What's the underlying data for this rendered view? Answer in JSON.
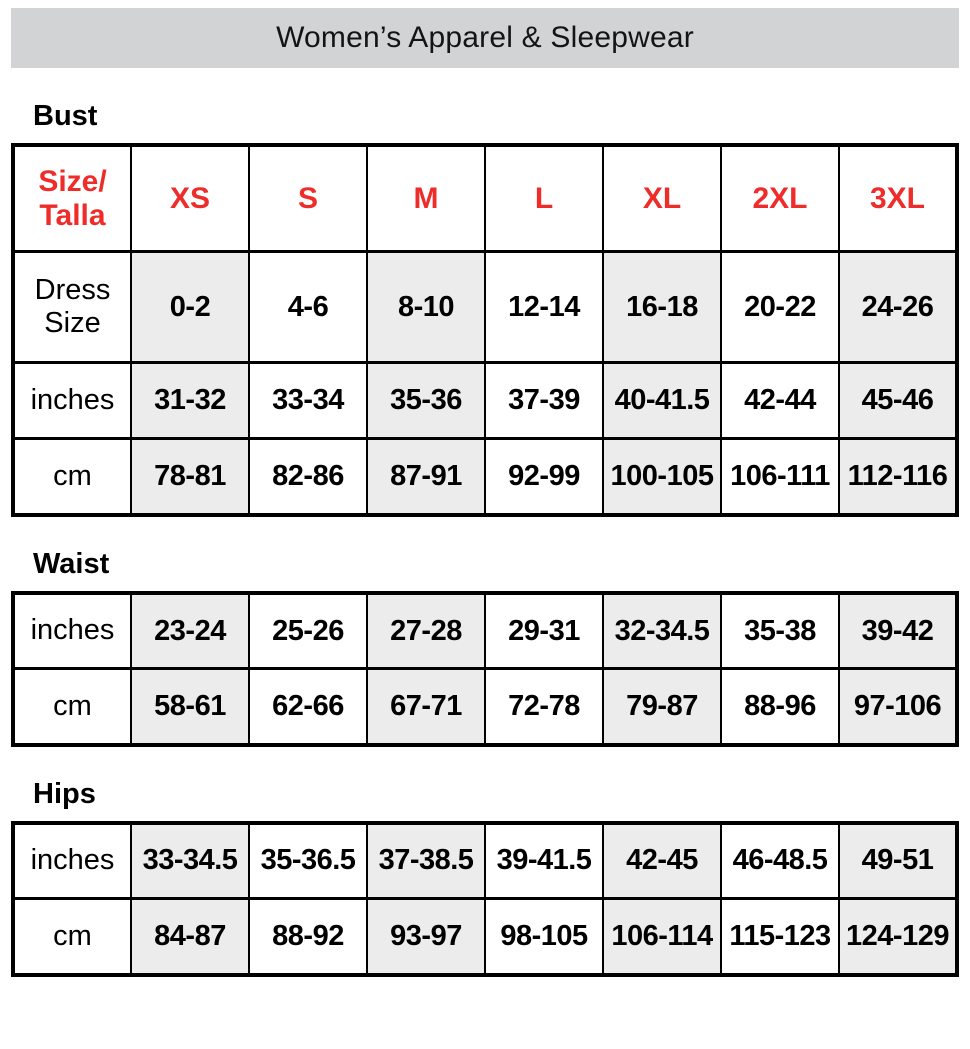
{
  "banner": {
    "title": "Women’s Apparel & Sleepwear"
  },
  "colors": {
    "banner_gray": "#d2d3d4",
    "shade_gray": "#ececed",
    "accent_red": "#ee2c29",
    "border_black": "#000000"
  },
  "sections": [
    {
      "heading": "Bust",
      "size_header": {
        "label_lines": [
          "Size/",
          "Talla"
        ],
        "sizes": [
          "XS",
          "S",
          "M",
          "L",
          "XL",
          "2XL",
          "3XL"
        ]
      },
      "rows": [
        {
          "label": "Dress Size",
          "values": [
            "0-2",
            "4-6",
            "8-10",
            "12-14",
            "16-18",
            "20-22",
            "24-26"
          ]
        },
        {
          "label": "inches",
          "values": [
            "31-32",
            "33-34",
            "35-36",
            "37-39",
            "40-41.5",
            "42-44",
            "45-46"
          ]
        },
        {
          "label": "cm",
          "values": [
            "78-81",
            "82-86",
            "87-91",
            "92-99",
            "100-105",
            "106-111",
            "112-116"
          ]
        }
      ]
    },
    {
      "heading": "Waist",
      "rows": [
        {
          "label": "inches",
          "values": [
            "23-24",
            "25-26",
            "27-28",
            "29-31",
            "32-34.5",
            "35-38",
            "39-42"
          ]
        },
        {
          "label": "cm",
          "values": [
            "58-61",
            "62-66",
            "67-71",
            "72-78",
            "79-87",
            "88-96",
            "97-106"
          ]
        }
      ]
    },
    {
      "heading": "Hips",
      "rows": [
        {
          "label": "inches",
          "values": [
            "33-34.5",
            "35-36.5",
            "37-38.5",
            "39-41.5",
            "42-45",
            "46-48.5",
            "49-51"
          ]
        },
        {
          "label": "cm",
          "values": [
            "84-87",
            "88-92",
            "93-97",
            "98-105",
            "106-114",
            "115-123",
            "124-129"
          ]
        }
      ]
    }
  ]
}
